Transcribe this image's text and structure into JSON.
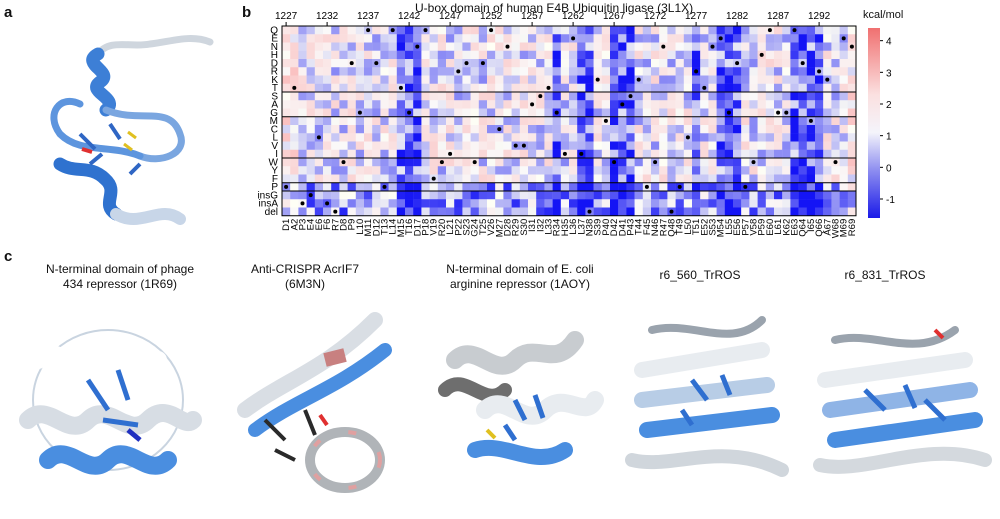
{
  "panels": {
    "a": "a",
    "b": "b",
    "c": "c"
  },
  "heatmap": {
    "title": "U-box domain of human E4B Ubiquitin ligase (3L1X)",
    "unit": "kcal/mol",
    "top_ticks": [
      "1227",
      "1232",
      "1237",
      "1242",
      "1247",
      "1252",
      "1257",
      "1262",
      "1267",
      "1272",
      "1277",
      "1282",
      "1287",
      "1292"
    ],
    "mutations": [
      "Q",
      "E",
      "N",
      "H",
      "D",
      "R",
      "K",
      "T",
      "S",
      "A",
      "G",
      "M",
      "C",
      "L",
      "V",
      "I",
      "W",
      "Y",
      "F",
      "P",
      "insG",
      "insA",
      "del"
    ],
    "positions": [
      "D1",
      "A2",
      "P3",
      "E4",
      "E6",
      "F6",
      "R7",
      "D8",
      "P9",
      "L10",
      "M11",
      "D12",
      "T13",
      "L14",
      "M15",
      "T16",
      "D17",
      "P18",
      "V19",
      "R20",
      "L21",
      "P22",
      "S23",
      "G24",
      "T25",
      "V26",
      "M27",
      "D28",
      "R29",
      "S30",
      "I31",
      "I32",
      "L33",
      "R34",
      "H35",
      "L36",
      "L37",
      "N38",
      "S39",
      "P40",
      "D42",
      "D41",
      "P43",
      "T44",
      "F45",
      "N46",
      "R47",
      "Q48",
      "T49",
      "L50",
      "T51",
      "E52",
      "S53",
      "M54",
      "L55",
      "E56",
      "P57",
      "V58",
      "P59",
      "E60",
      "L61",
      "K62",
      "E63",
      "Q64",
      "I65",
      "Q66",
      "A67",
      "W68",
      "M69",
      "R69"
    ],
    "colorbar_ticks": [
      "4",
      "3",
      "2",
      "1",
      "0",
      "-1"
    ]
  },
  "captions": [
    "N-terminal domain of phage\n434 repressor (1R69)",
    "Anti-CRISPR AcrIF7\n(6M3N)",
    "N-terminal domain of E. coli\narginine repressor (1AOY)",
    "r6_560_TrROS",
    "r6_831_TrROS"
  ]
}
